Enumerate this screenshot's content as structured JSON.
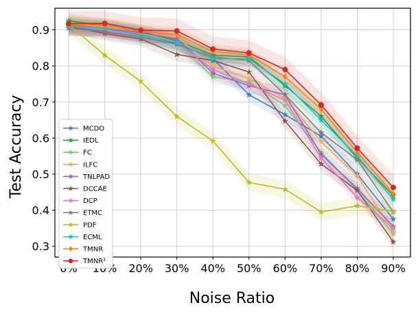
{
  "chart_data": {
    "type": "line",
    "title": "",
    "xlabel": "Noise Ratio",
    "ylabel": "Test Accuracy",
    "categories": [
      "0%",
      "10%",
      "20%",
      "30%",
      "40%",
      "50%",
      "60%",
      "70%",
      "80%",
      "90%"
    ],
    "ylim": [
      0.27,
      0.96
    ],
    "yticks": [
      0.3,
      0.4,
      0.5,
      0.6,
      0.7,
      0.8,
      0.9
    ],
    "ytick_labels": [
      "0.3",
      "0.4",
      "0.5",
      "0.6",
      "0.7",
      "0.8",
      "0.9"
    ],
    "grid": true,
    "legend_position": "left",
    "series": [
      {
        "name": "MCDO",
        "color": "#4a7dbf",
        "marker": "star",
        "band": 0.02,
        "values": [
          0.905,
          0.9,
          0.888,
          0.862,
          0.82,
          0.72,
          0.665,
          0.605,
          0.5,
          0.375
        ]
      },
      {
        "name": "IEDL",
        "color": "#2ca02c",
        "marker": "star",
        "band": 0.02,
        "values": [
          0.925,
          0.912,
          0.895,
          0.87,
          0.83,
          0.825,
          0.745,
          0.66,
          0.545,
          0.44
        ]
      },
      {
        "name": "FC",
        "color": "#77c979",
        "marker": "star",
        "band": 0.02,
        "values": [
          0.92,
          0.905,
          0.89,
          0.865,
          0.77,
          0.755,
          0.69,
          0.56,
          0.455,
          0.335
        ]
      },
      {
        "name": "ILFC",
        "color": "#f5a85b",
        "marker": "star",
        "band": 0.02,
        "values": [
          0.915,
          0.91,
          0.89,
          0.88,
          0.8,
          0.765,
          0.71,
          0.59,
          0.495,
          0.34
        ]
      },
      {
        "name": "TNLPAD",
        "color": "#9467bd",
        "marker": "star",
        "band": 0.02,
        "values": [
          0.912,
          0.905,
          0.892,
          0.875,
          0.78,
          0.745,
          0.72,
          0.555,
          0.46,
          0.355
        ]
      },
      {
        "name": "DCCAE",
        "color": "#8c564b",
        "marker": "star",
        "band": 0.02,
        "values": [
          0.91,
          0.89,
          0.875,
          0.832,
          0.815,
          0.783,
          0.647,
          0.528,
          0.455,
          0.312
        ]
      },
      {
        "name": "DCP",
        "color": "#e377c2",
        "marker": "star",
        "band": 0.02,
        "values": [
          0.91,
          0.9,
          0.885,
          0.865,
          0.79,
          0.75,
          0.705,
          0.545,
          0.435,
          0.35
        ]
      },
      {
        "name": "ETMC",
        "color": "#7f7f7f",
        "marker": "star",
        "band": 0.02,
        "values": [
          0.905,
          0.895,
          0.88,
          0.86,
          0.825,
          0.815,
          0.72,
          0.615,
          0.54,
          0.395
        ]
      },
      {
        "name": "PDF",
        "color": "#bcbd22",
        "marker": "star",
        "band": 0.025,
        "values": [
          0.915,
          0.83,
          0.757,
          0.66,
          0.592,
          0.477,
          0.458,
          0.395,
          0.412,
          0.397
        ]
      },
      {
        "name": "ECML",
        "color": "#17becf",
        "marker": "star",
        "band": 0.02,
        "values": [
          0.91,
          0.905,
          0.885,
          0.865,
          0.82,
          0.82,
          0.75,
          0.65,
          0.55,
          0.43
        ]
      },
      {
        "name": "TMNR",
        "color": "#ff7f0e",
        "marker": "diamond",
        "band": 0.02,
        "values": [
          0.915,
          0.912,
          0.895,
          0.888,
          0.84,
          0.83,
          0.77,
          0.68,
          0.56,
          0.445
        ]
      },
      {
        "name": "TMNR²",
        "color": "#d62728",
        "marker": "circle",
        "band": 0.035,
        "values": [
          0.917,
          0.918,
          0.899,
          0.897,
          0.847,
          0.836,
          0.79,
          0.692,
          0.572,
          0.463
        ]
      }
    ]
  }
}
